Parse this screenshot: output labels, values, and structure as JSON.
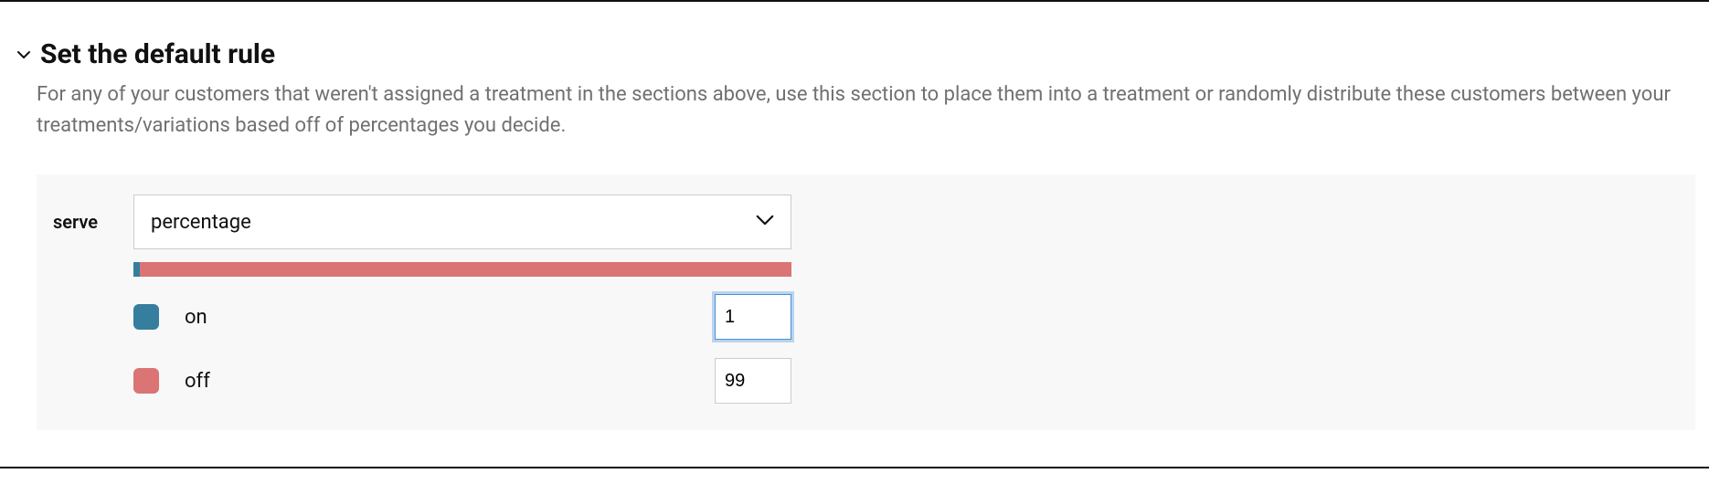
{
  "section": {
    "title": "Set the default rule",
    "description": "For any of your customers that weren't assigned a treatment in the sections above, use this section to place them into a treatment or randomly distribute these customers between your treatments/variations based off of percentages you decide."
  },
  "panel": {
    "serve_label": "serve",
    "serve_value": "percentage",
    "distribution_bar": {
      "on_percent": 1,
      "off_percent": 99,
      "on_color": "#357e9e",
      "off_color": "#db7474"
    },
    "treatments": {
      "on": {
        "label": "on",
        "value": "1",
        "color": "#357e9e",
        "focused": true
      },
      "off": {
        "label": "off",
        "value": "99",
        "color": "#db7474",
        "focused": false
      }
    }
  },
  "colors": {
    "text": "#111111",
    "muted": "#707070",
    "panel_bg": "#f8f8f8",
    "border": "#cccccc",
    "focus": "#4a90d9"
  }
}
